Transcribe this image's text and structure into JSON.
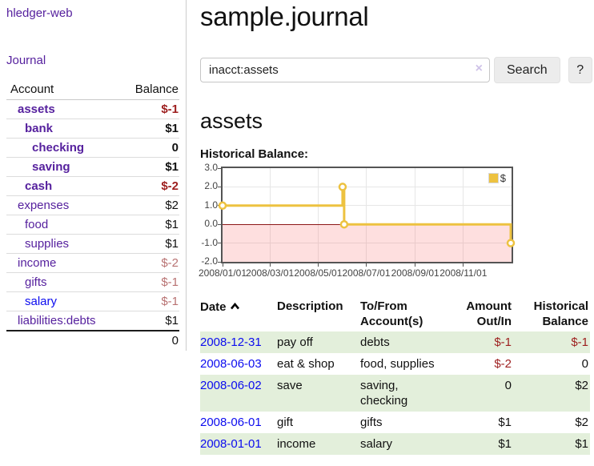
{
  "sidebar": {
    "app_title": "hledger-web",
    "nav": {
      "journal_label": "Journal"
    },
    "accounts_table": {
      "headers": {
        "account": "Account",
        "balance": "Balance"
      },
      "rows": [
        {
          "name": "assets",
          "depth": 1,
          "balance": "$-1",
          "bold": true,
          "balance_style": "neg-strong",
          "link_blue": false
        },
        {
          "name": "bank",
          "depth": 2,
          "balance": "$1",
          "bold": true,
          "balance_style": "pos",
          "link_blue": false
        },
        {
          "name": "checking",
          "depth": 3,
          "balance": "0",
          "bold": true,
          "balance_style": "pos",
          "link_blue": false
        },
        {
          "name": "saving",
          "depth": 3,
          "balance": "$1",
          "bold": true,
          "balance_style": "pos",
          "link_blue": false
        },
        {
          "name": "cash",
          "depth": 2,
          "balance": "$-2",
          "bold": true,
          "balance_style": "neg-strong",
          "link_blue": false
        },
        {
          "name": "expenses",
          "depth": 1,
          "balance": "$2",
          "bold": false,
          "balance_style": "pos",
          "link_blue": false
        },
        {
          "name": "food",
          "depth": 2,
          "balance": "$1",
          "bold": false,
          "balance_style": "pos",
          "link_blue": false
        },
        {
          "name": "supplies",
          "depth": 2,
          "balance": "$1",
          "bold": false,
          "balance_style": "pos",
          "link_blue": false
        },
        {
          "name": "income",
          "depth": 1,
          "balance": "$-2",
          "bold": false,
          "balance_style": "neg-soft",
          "link_blue": false
        },
        {
          "name": "gifts",
          "depth": 2,
          "balance": "$-1",
          "bold": false,
          "balance_style": "neg-soft",
          "link_blue": false
        },
        {
          "name": "salary",
          "depth": 2,
          "balance": "$-1",
          "bold": false,
          "balance_style": "neg-soft",
          "link_blue": true
        },
        {
          "name": "liabilities:debts",
          "depth": 1,
          "balance": "$1",
          "bold": false,
          "balance_style": "pos",
          "link_blue": false
        }
      ],
      "total": "0"
    }
  },
  "header": {
    "title": "sample.journal"
  },
  "search": {
    "value": "inacct:assets",
    "clear_icon": "×",
    "search_button": "Search",
    "help_button": "?"
  },
  "account_page": {
    "heading": "assets",
    "chart_label": "Historical Balance:"
  },
  "chart_data": {
    "type": "line",
    "style": "step",
    "title": "Historical Balance",
    "ylim": [
      -2,
      3
    ],
    "y_ticks": [
      "3.0",
      "2.0",
      "1.0",
      "0.0",
      "-1.0",
      "-2.0"
    ],
    "x_ticks": [
      {
        "label": "2008/01/01",
        "day": 0
      },
      {
        "label": "2008/03/01",
        "day": 60
      },
      {
        "label": "2008/05/01",
        "day": 121
      },
      {
        "label": "2008/07/01",
        "day": 182
      },
      {
        "label": "2008/09/01",
        "day": 244
      },
      {
        "label": "2008/11/01",
        "day": 305
      }
    ],
    "x_total_days": 366,
    "grid": true,
    "legend": {
      "label": "$",
      "position": "top-right"
    },
    "series": [
      {
        "name": "$",
        "color": "#edc240",
        "points": [
          {
            "date": "2008-01-01",
            "value": 1
          },
          {
            "date": "2008-06-01",
            "value": 2
          },
          {
            "date": "2008-06-03",
            "value": 0
          },
          {
            "date": "2008-12-31",
            "value": -1
          }
        ]
      }
    ],
    "zero_line_color": "#8c1717",
    "negative_region": true
  },
  "register_table": {
    "headers": {
      "date": "Date",
      "description": "Description",
      "accounts": "To/From Account(s)",
      "amount": "Amount Out/In",
      "balance": "Historical Balance"
    },
    "rows": [
      {
        "date": "2008-12-31",
        "description": "pay off",
        "accounts": "debts",
        "amount": "$-1",
        "amount_negative": true,
        "balance": "$-1",
        "balance_negative": true
      },
      {
        "date": "2008-06-03",
        "description": "eat & shop",
        "accounts": "food, supplies",
        "amount": "$-2",
        "amount_negative": true,
        "balance": "0",
        "balance_negative": false
      },
      {
        "date": "2008-06-02",
        "description": "save",
        "accounts": "saving, checking",
        "amount": "0",
        "amount_negative": false,
        "balance": "$2",
        "balance_negative": false
      },
      {
        "date": "2008-06-01",
        "description": "gift",
        "accounts": "gifts",
        "amount": "$1",
        "amount_negative": false,
        "balance": "$2",
        "balance_negative": false
      },
      {
        "date": "2008-01-01",
        "description": "income",
        "accounts": "salary",
        "amount": "$1",
        "amount_negative": false,
        "balance": "$1",
        "balance_negative": false
      }
    ]
  }
}
